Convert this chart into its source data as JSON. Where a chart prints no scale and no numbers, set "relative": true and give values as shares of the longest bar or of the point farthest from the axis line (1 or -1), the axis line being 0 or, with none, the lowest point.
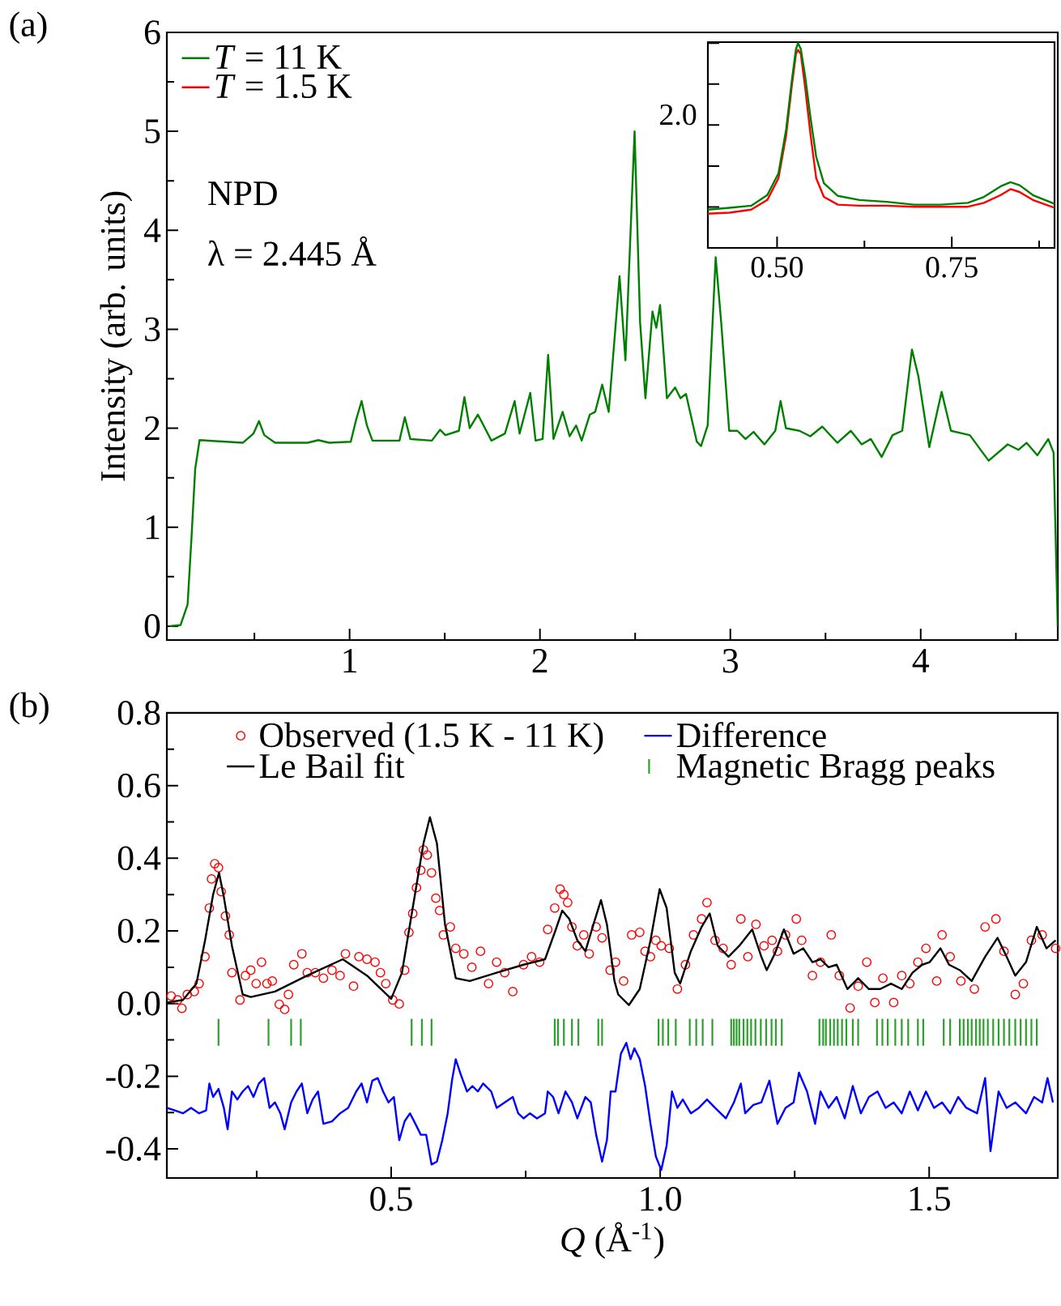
{
  "chart_data": [
    {
      "type": "line",
      "ylabel": "Intensity (arb. units)",
      "annotations": [
        "(a)",
        "NPD",
        "λ = 2.445 Å"
      ],
      "xlim": [
        0.04,
        4.72
      ],
      "ylim": [
        -0.14,
        6
      ],
      "xticks": [
        {
          "value": 0.5,
          "label": null
        },
        1,
        {
          "value": 1.5,
          "label": null
        },
        2,
        {
          "value": 2.5,
          "label": null
        },
        3,
        {
          "value": 3.5,
          "label": null
        },
        4,
        {
          "value": 4.5,
          "label": null
        }
      ],
      "yticks": [
        0,
        {
          "value": 0.5,
          "label": null
        },
        1,
        {
          "value": 1.5,
          "label": null
        },
        2,
        {
          "value": 2.5,
          "label": null
        },
        3,
        {
          "value": 3.5,
          "label": null
        },
        4,
        {
          "value": 4.5,
          "label": null
        },
        5,
        {
          "value": 5.5,
          "label": null
        },
        6
      ],
      "legend": "top left",
      "series": [
        {
          "name": "*T* = 11 K",
          "color": "#008000",
          "x": [
            0.055,
            0.112,
            0.149,
            0.169,
            0.189,
            0.212,
            0.353,
            0.439,
            0.495,
            0.524,
            0.552,
            0.609,
            0.779,
            0.836,
            0.893,
            1.006,
            1.034,
            1.063,
            1.091,
            1.12,
            1.262,
            1.29,
            1.319,
            1.432,
            1.475,
            1.503,
            1.574,
            1.603,
            1.631,
            1.674,
            1.745,
            1.816,
            1.867,
            1.893,
            1.949,
            1.977,
            2.014,
            2.043,
            2.071,
            2.119,
            2.156,
            2.19,
            2.219,
            2.262,
            2.29,
            2.327,
            2.361,
            2.418,
            2.449,
            2.497,
            2.526,
            2.554,
            2.591,
            2.611,
            2.631,
            2.667,
            2.71,
            2.738,
            2.767,
            2.824,
            2.846,
            2.881,
            2.923,
            2.952,
            2.994,
            3.037,
            3.08,
            3.122,
            3.179,
            3.236,
            3.264,
            3.292,
            3.363,
            3.42,
            3.483,
            3.562,
            3.633,
            3.69,
            3.738,
            3.795,
            3.852,
            3.903,
            3.954,
            3.988,
            4.045,
            4.11,
            4.159,
            4.258,
            4.357,
            4.457,
            4.514,
            4.556,
            4.613,
            4.67,
            4.698,
            4.72
          ],
          "values": [
            0.0,
            0.011,
            0.219,
            0.877,
            1.59,
            1.88,
            1.864,
            1.853,
            1.946,
            2.072,
            1.93,
            1.853,
            1.853,
            1.88,
            1.853,
            1.864,
            2.083,
            2.275,
            2.028,
            1.875,
            1.875,
            2.111,
            1.891,
            1.875,
            1.985,
            1.93,
            1.974,
            2.314,
            2.001,
            2.138,
            1.875,
            1.946,
            2.275,
            1.946,
            2.357,
            1.875,
            1.891,
            2.741,
            1.891,
            2.165,
            1.919,
            2.028,
            1.875,
            2.138,
            2.165,
            2.44,
            2.165,
            3.536,
            2.686,
            5.0,
            3.07,
            2.303,
            3.18,
            3.015,
            3.246,
            2.303,
            2.412,
            2.303,
            2.347,
            1.864,
            1.82,
            2.028,
            3.728,
            3.07,
            1.974,
            1.974,
            1.891,
            1.963,
            1.837,
            1.974,
            2.275,
            2.001,
            1.974,
            1.919,
            2.017,
            1.853,
            1.974,
            1.837,
            1.891,
            1.71,
            1.93,
            1.974,
            2.796,
            2.522,
            1.809,
            2.368,
            1.974,
            1.93,
            1.672,
            1.837,
            1.782,
            1.853,
            1.727,
            1.891,
            1.754,
            0.0
          ]
        },
        {
          "name": "*T* = 1.5 K",
          "color": "#ff0000",
          "values": [
            null
          ]
        }
      ]
    },
    {
      "type": "line",
      "relative": true,
      "annotations": [
        "2.0"
      ],
      "xlim": [
        0.401,
        0.897
      ],
      "xticks": [
        {
          "value": 0.5,
          "label": "0.50"
        },
        {
          "value": 0.625,
          "label": null
        },
        {
          "value": 0.75,
          "label": "0.75"
        },
        {
          "value": 0.875,
          "label": null
        }
      ],
      "series": [
        {
          "color": "#008000",
          "x": [
            0.401,
            0.432,
            0.463,
            0.486,
            0.502,
            0.513,
            0.521,
            0.527,
            0.53,
            0.534,
            0.54,
            0.548,
            0.556,
            0.567,
            0.587,
            0.618,
            0.657,
            0.696,
            0.734,
            0.773,
            0.796,
            0.82,
            0.834,
            0.847,
            0.866,
            0.897
          ],
          "values": [
            0.187,
            0.196,
            0.206,
            0.258,
            0.364,
            0.579,
            0.813,
            0.971,
            1,
            0.971,
            0.842,
            0.632,
            0.445,
            0.316,
            0.254,
            0.234,
            0.225,
            0.211,
            0.211,
            0.22,
            0.249,
            0.301,
            0.321,
            0.306,
            0.258,
            0.215
          ]
        },
        {
          "color": "#ff0000",
          "x": [
            0.401,
            0.432,
            0.463,
            0.486,
            0.502,
            0.513,
            0.521,
            0.527,
            0.53,
            0.534,
            0.54,
            0.548,
            0.556,
            0.567,
            0.587,
            0.618,
            0.657,
            0.696,
            0.734,
            0.773,
            0.796,
            0.82,
            0.834,
            0.847,
            0.866,
            0.897
          ],
          "values": [
            0.167,
            0.172,
            0.187,
            0.234,
            0.34,
            0.55,
            0.789,
            0.947,
            0.967,
            0.947,
            0.789,
            0.55,
            0.34,
            0.249,
            0.211,
            0.206,
            0.206,
            0.201,
            0.201,
            0.201,
            0.22,
            0.258,
            0.287,
            0.273,
            0.234,
            0.196
          ]
        }
      ]
    },
    {
      "type": "scatter",
      "xlabel": "*Q* (Å$^{-1}$)",
      "annotations": [
        "(b)"
      ],
      "xlim": [
        0.083,
        1.739
      ],
      "ylim": [
        -0.48,
        0.8
      ],
      "xticks": [
        {
          "value": 0.25,
          "label": null
        },
        {
          "value": 0.5,
          "label": "0.5"
        },
        {
          "value": 0.75,
          "label": null
        },
        {
          "value": 1.0,
          "label": "1.0"
        },
        {
          "value": 1.25,
          "label": null
        },
        {
          "value": 1.5,
          "label": "1.5"
        }
      ],
      "yticks": [
        {
          "value": -0.4,
          "label": "-0.4"
        },
        {
          "value": -0.3,
          "label": null
        },
        {
          "value": -0.2,
          "label": "-0.2"
        },
        {
          "value": -0.1,
          "label": null
        },
        {
          "value": 0.0,
          "label": "0.0"
        },
        {
          "value": 0.1,
          "label": null
        },
        {
          "value": 0.2,
          "label": "0.2"
        },
        {
          "value": 0.3,
          "label": null
        },
        {
          "value": 0.4,
          "label": "0.4"
        },
        {
          "value": 0.5,
          "label": null
        },
        {
          "value": 0.6,
          "label": "0.6"
        },
        {
          "value": 0.7,
          "label": null
        },
        {
          "value": 0.8,
          "label": "0.8"
        }
      ],
      "legend": "top",
      "series": [
        {
          "name": "Observed (1.5 K - 11 K)",
          "type": "scatter",
          "marker": "circle",
          "color": "#ff0000",
          "x": [
            0.091,
            0.103,
            0.111,
            0.121,
            0.134,
            0.143,
            0.154,
            0.162,
            0.166,
            0.172,
            0.179,
            0.184,
            0.192,
            0.199,
            0.204,
            0.219,
            0.229,
            0.239,
            0.249,
            0.259,
            0.269,
            0.279,
            0.292,
            0.302,
            0.309,
            0.319,
            0.334,
            0.344,
            0.359,
            0.374,
            0.39,
            0.405,
            0.415,
            0.43,
            0.44,
            0.455,
            0.47,
            0.48,
            0.49,
            0.503,
            0.515,
            0.525,
            0.533,
            0.54,
            0.547,
            0.555,
            0.56,
            0.567,
            0.575,
            0.583,
            0.59,
            0.597,
            0.61,
            0.62,
            0.635,
            0.65,
            0.666,
            0.681,
            0.696,
            0.711,
            0.726,
            0.746,
            0.761,
            0.776,
            0.791,
            0.804,
            0.814,
            0.821,
            0.828,
            0.836,
            0.846,
            0.858,
            0.868,
            0.881,
            0.892,
            0.907,
            0.917,
            0.932,
            0.947,
            0.962,
            0.972,
            0.982,
            0.992,
            1.002,
            1.017,
            1.032,
            1.047,
            1.062,
            1.077,
            1.087,
            1.102,
            1.117,
            1.132,
            1.15,
            1.163,
            1.178,
            1.193,
            1.208,
            1.218,
            1.233,
            1.253,
            1.263,
            1.283,
            1.298,
            1.318,
            1.333,
            1.353,
            1.368,
            1.384,
            1.399,
            1.414,
            1.434,
            1.449,
            1.464,
            1.479,
            1.494,
            1.514,
            1.524,
            1.539,
            1.559,
            1.584,
            1.604,
            1.624,
            1.639,
            1.66,
            1.675,
            1.69,
            1.71,
            1.735
          ],
          "values": [
            0.021,
            0.01,
            -0.013,
            0.025,
            0.033,
            0.055,
            0.129,
            0.263,
            0.343,
            0.385,
            0.374,
            0.308,
            0.241,
            0.189,
            0.085,
            0.01,
            0.077,
            0.092,
            0.055,
            0.114,
            0.055,
            0.062,
            -0.002,
            -0.016,
            0.025,
            0.107,
            0.137,
            0.085,
            0.085,
            0.07,
            0.092,
            0.077,
            0.137,
            0.048,
            0.129,
            0.122,
            0.114,
            0.085,
            0.055,
            0.01,
            -0.001,
            0.092,
            0.196,
            0.248,
            0.319,
            0.367,
            0.423,
            0.409,
            0.36,
            0.29,
            0.256,
            0.189,
            0.211,
            0.152,
            0.137,
            0.1,
            0.144,
            0.055,
            0.114,
            0.085,
            0.033,
            0.107,
            0.129,
            0.114,
            0.204,
            0.263,
            0.315,
            0.3,
            0.278,
            0.211,
            0.159,
            0.189,
            0.137,
            0.211,
            0.181,
            0.092,
            0.114,
            0.062,
            0.189,
            0.196,
            0.144,
            0.129,
            0.174,
            0.159,
            0.152,
            0.04,
            0.107,
            0.189,
            0.233,
            0.278,
            0.174,
            0.152,
            0.107,
            0.233,
            0.129,
            0.218,
            0.159,
            0.174,
            0.144,
            0.189,
            0.233,
            0.174,
            0.077,
            0.114,
            0.189,
            0.077,
            -0.012,
            0.048,
            0.114,
            0.003,
            0.07,
            0.003,
            0.077,
            0.055,
            0.114,
            0.152,
            0.062,
            0.189,
            0.129,
            0.062,
            0.04,
            0.211,
            0.233,
            0.144,
            0.025,
            0.055,
            0.174,
            0.189,
            0.152
          ]
        },
        {
          "name": "Difference",
          "type": "line",
          "color": "#0000ff",
          "x": [
            0.083,
            0.098,
            0.113,
            0.128,
            0.143,
            0.156,
            0.162,
            0.169,
            0.179,
            0.189,
            0.196,
            0.204,
            0.214,
            0.224,
            0.234,
            0.244,
            0.254,
            0.264,
            0.274,
            0.284,
            0.294,
            0.302,
            0.314,
            0.324,
            0.334,
            0.344,
            0.354,
            0.364,
            0.374,
            0.39,
            0.405,
            0.42,
            0.435,
            0.445,
            0.455,
            0.465,
            0.475,
            0.485,
            0.495,
            0.505,
            0.515,
            0.525,
            0.535,
            0.545,
            0.555,
            0.565,
            0.575,
            0.585,
            0.595,
            0.605,
            0.613,
            0.62,
            0.63,
            0.641,
            0.651,
            0.661,
            0.671,
            0.686,
            0.696,
            0.711,
            0.726,
            0.736,
            0.746,
            0.758,
            0.771,
            0.786,
            0.791,
            0.801,
            0.811,
            0.824,
            0.836,
            0.846,
            0.861,
            0.871,
            0.881,
            0.892,
            0.901,
            0.908,
            0.917,
            0.927,
            0.937,
            0.945,
            0.952,
            0.962,
            0.972,
            0.982,
            0.992,
            1.002,
            1.012,
            1.022,
            1.032,
            1.042,
            1.057,
            1.072,
            1.087,
            1.102,
            1.122,
            1.137,
            1.15,
            1.158,
            1.173,
            1.188,
            1.203,
            1.218,
            1.233,
            1.248,
            1.258,
            1.273,
            1.288,
            1.298,
            1.313,
            1.328,
            1.343,
            1.358,
            1.373,
            1.388,
            1.404,
            1.419,
            1.434,
            1.449,
            1.464,
            1.479,
            1.494,
            1.509,
            1.524,
            1.539,
            1.554,
            1.569,
            1.589,
            1.604,
            1.614,
            1.629,
            1.644,
            1.66,
            1.68,
            1.695,
            1.71,
            1.72,
            1.73
          ],
          "values": [
            -0.287,
            -0.294,
            -0.302,
            -0.287,
            -0.302,
            -0.294,
            -0.22,
            -0.257,
            -0.235,
            -0.287,
            -0.346,
            -0.242,
            -0.264,
            -0.242,
            -0.227,
            -0.257,
            -0.22,
            -0.205,
            -0.287,
            -0.272,
            -0.302,
            -0.346,
            -0.272,
            -0.242,
            -0.22,
            -0.302,
            -0.264,
            -0.242,
            -0.331,
            -0.324,
            -0.302,
            -0.287,
            -0.242,
            -0.22,
            -0.272,
            -0.212,
            -0.205,
            -0.242,
            -0.272,
            -0.257,
            -0.376,
            -0.324,
            -0.302,
            -0.331,
            -0.361,
            -0.361,
            -0.443,
            -0.435,
            -0.376,
            -0.302,
            -0.212,
            -0.153,
            -0.198,
            -0.242,
            -0.227,
            -0.242,
            -0.22,
            -0.242,
            -0.287,
            -0.272,
            -0.257,
            -0.302,
            -0.316,
            -0.302,
            -0.316,
            -0.302,
            -0.242,
            -0.257,
            -0.302,
            -0.242,
            -0.272,
            -0.316,
            -0.257,
            -0.272,
            -0.361,
            -0.435,
            -0.376,
            -0.242,
            -0.242,
            -0.138,
            -0.108,
            -0.153,
            -0.123,
            -0.153,
            -0.227,
            -0.331,
            -0.421,
            -0.458,
            -0.391,
            -0.242,
            -0.287,
            -0.264,
            -0.302,
            -0.287,
            -0.264,
            -0.287,
            -0.316,
            -0.272,
            -0.22,
            -0.302,
            -0.279,
            -0.272,
            -0.212,
            -0.331,
            -0.287,
            -0.272,
            -0.19,
            -0.242,
            -0.331,
            -0.242,
            -0.287,
            -0.257,
            -0.316,
            -0.227,
            -0.302,
            -0.257,
            -0.242,
            -0.287,
            -0.272,
            -0.302,
            -0.242,
            -0.294,
            -0.242,
            -0.287,
            -0.272,
            -0.302,
            -0.257,
            -0.287,
            -0.302,
            -0.205,
            -0.406,
            -0.242,
            -0.287,
            -0.272,
            -0.302,
            -0.257,
            -0.272,
            -0.205,
            -0.272
          ]
        },
        {
          "name": "Le Bail fit",
          "type": "line",
          "color": "#000000",
          "x": [
            0.083,
            0.113,
            0.138,
            0.154,
            0.169,
            0.18,
            0.189,
            0.204,
            0.224,
            0.239,
            0.284,
            0.344,
            0.41,
            0.455,
            0.5,
            0.52,
            0.54,
            0.56,
            0.572,
            0.585,
            0.6,
            0.62,
            0.646,
            0.696,
            0.746,
            0.786,
            0.806,
            0.818,
            0.831,
            0.846,
            0.861,
            0.876,
            0.89,
            0.901,
            0.915,
            0.922,
            0.942,
            0.962,
            0.982,
            0.999,
            1.012,
            1.027,
            1.037,
            1.057,
            1.077,
            1.092,
            1.107,
            1.127,
            1.147,
            1.171,
            1.188,
            1.198,
            1.213,
            1.23,
            1.248,
            1.266,
            1.283,
            1.298,
            1.313,
            1.328,
            1.348,
            1.368,
            1.388,
            1.409,
            1.429,
            1.449,
            1.469,
            1.487,
            1.501,
            1.521,
            1.537,
            1.557,
            1.579,
            1.604,
            1.627,
            1.644,
            1.66,
            1.68,
            1.7,
            1.718,
            1.735
          ],
          "values": [
            0.003,
            0.01,
            0.055,
            0.174,
            0.3,
            0.36,
            0.293,
            0.159,
            0.025,
            0.018,
            0.033,
            0.077,
            0.122,
            0.077,
            0.013,
            0.085,
            0.263,
            0.441,
            0.513,
            0.441,
            0.218,
            0.07,
            0.062,
            0.085,
            0.107,
            0.122,
            0.204,
            0.256,
            0.233,
            0.174,
            0.144,
            0.218,
            0.285,
            0.218,
            0.062,
            0.025,
            -0.004,
            0.04,
            0.174,
            0.315,
            0.263,
            0.085,
            0.055,
            0.144,
            0.211,
            0.248,
            0.159,
            0.129,
            0.159,
            0.204,
            0.129,
            0.092,
            0.137,
            0.204,
            0.137,
            0.152,
            0.114,
            0.122,
            0.1,
            0.107,
            0.04,
            0.07,
            0.04,
            0.04,
            0.055,
            0.04,
            0.085,
            0.107,
            0.114,
            0.152,
            0.107,
            0.092,
            0.062,
            0.129,
            0.181,
            0.129,
            0.077,
            0.114,
            0.211,
            0.152,
            0.174
          ]
        },
        {
          "name": "Magnetic Bragg peaks",
          "type": "bar",
          "color": "#2ca02c",
          "x": [
            0.179,
            0.272,
            0.314,
            0.332,
            0.538,
            0.557,
            0.575,
            0.804,
            0.81,
            0.821,
            0.836,
            0.848,
            0.885,
            0.892,
            0.997,
            1.005,
            1.015,
            1.029,
            1.055,
            1.067,
            1.079,
            1.097,
            1.132,
            1.137,
            1.142,
            1.147,
            1.155,
            1.162,
            1.169,
            1.177,
            1.187,
            1.197,
            1.207,
            1.215,
            1.226,
            1.296,
            1.303,
            1.308,
            1.316,
            1.323,
            1.33,
            1.338,
            1.346,
            1.358,
            1.368,
            1.403,
            1.413,
            1.423,
            1.437,
            1.449,
            1.461,
            1.479,
            1.489,
            1.527,
            1.539,
            1.557,
            1.564,
            1.572,
            1.579,
            1.587,
            1.594,
            1.601,
            1.609,
            1.619,
            1.629,
            1.639,
            1.649,
            1.66,
            1.67,
            1.68,
            1.69,
            1.7
          ],
          "base": [
            -0.116,
            -0.116,
            -0.116,
            -0.116,
            -0.116,
            -0.116,
            -0.116,
            -0.116,
            -0.116,
            -0.116,
            -0.116,
            -0.116,
            -0.116,
            -0.116,
            -0.116,
            -0.116,
            -0.116,
            -0.116,
            -0.116,
            -0.116,
            -0.116,
            -0.116,
            -0.116,
            -0.116,
            -0.116,
            -0.116,
            -0.116,
            -0.116,
            -0.116,
            -0.116,
            -0.116,
            -0.116,
            -0.116,
            -0.116,
            -0.116,
            -0.116,
            -0.116,
            -0.116,
            -0.116,
            -0.116,
            -0.116,
            -0.116,
            -0.116,
            -0.116,
            -0.116,
            -0.116,
            -0.116,
            -0.116,
            -0.116,
            -0.116,
            -0.116,
            -0.116,
            -0.116,
            -0.116,
            -0.116,
            -0.116,
            -0.116,
            -0.116,
            -0.116,
            -0.116,
            -0.116,
            -0.116,
            -0.116,
            -0.116,
            -0.116,
            -0.116,
            -0.116,
            -0.116,
            -0.116,
            -0.116,
            -0.116,
            -0.116
          ],
          "values": [
            0.074,
            0.074,
            0.074,
            0.074,
            0.074,
            0.074,
            0.074,
            0.074,
            0.074,
            0.074,
            0.074,
            0.074,
            0.074,
            0.074,
            0.074,
            0.074,
            0.074,
            0.074,
            0.074,
            0.074,
            0.074,
            0.074,
            0.074,
            0.074,
            0.074,
            0.074,
            0.074,
            0.074,
            0.074,
            0.074,
            0.074,
            0.074,
            0.074,
            0.074,
            0.074,
            0.074,
            0.074,
            0.074,
            0.074,
            0.074,
            0.074,
            0.074,
            0.074,
            0.074,
            0.074,
            0.074,
            0.074,
            0.074,
            0.074,
            0.074,
            0.074,
            0.074,
            0.074,
            0.074,
            0.074,
            0.074,
            0.074,
            0.074,
            0.074,
            0.074,
            0.074,
            0.074,
            0.074,
            0.074,
            0.074,
            0.074,
            0.074,
            0.074,
            0.074,
            0.074,
            0.074,
            0.074
          ]
        }
      ]
    }
  ]
}
